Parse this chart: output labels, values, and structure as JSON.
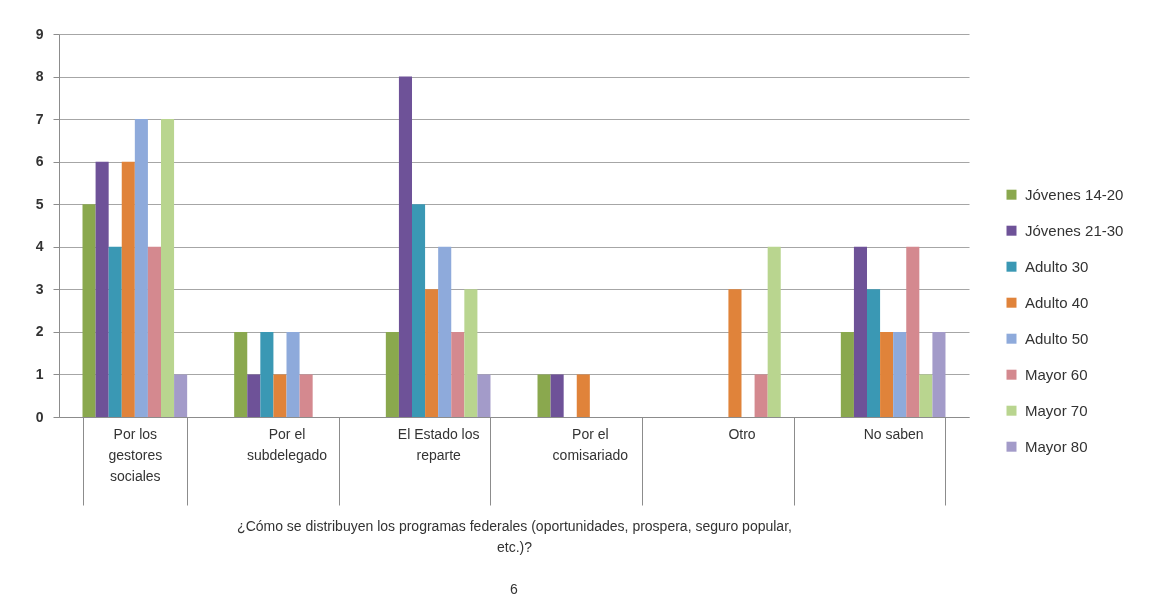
{
  "chart_data": {
    "type": "bar",
    "xlabel": "¿Cómo se distribuyen los programas federales (oportunidades, prospera, seguro popular, etc.)?",
    "annotations": [
      "6"
    ],
    "categories": [
      "Por los gestores sociales",
      "Por el subdelegado",
      "El Estado los reparte",
      "Por el comisariado",
      "Otro",
      "No saben"
    ],
    "series": [
      {
        "name": "Jóvenes 14-20",
        "color": "#8aa84e",
        "values": [
          5,
          2,
          2,
          1,
          null,
          2
        ]
      },
      {
        "name": "Jóvenes 21-30",
        "color": "#6e5298",
        "values": [
          6,
          1,
          8,
          1,
          null,
          4
        ]
      },
      {
        "name": "Adulto 30",
        "color": "#3a98b4",
        "values": [
          4,
          2,
          5,
          null,
          null,
          3
        ]
      },
      {
        "name": "Adulto 40",
        "color": "#e0833a",
        "values": [
          6,
          1,
          3,
          1,
          3,
          2
        ]
      },
      {
        "name": "Adulto 50",
        "color": "#8eaadb",
        "values": [
          7,
          2,
          4,
          null,
          null,
          2
        ]
      },
      {
        "name": "Mayor 60",
        "color": "#d4898f",
        "values": [
          4,
          1,
          2,
          null,
          1,
          4
        ]
      },
      {
        "name": "Mayor 70",
        "color": "#b9d58f",
        "values": [
          7,
          null,
          3,
          null,
          4,
          1
        ]
      },
      {
        "name": "Mayor 80",
        "color": "#a39bc9",
        "values": [
          1,
          null,
          1,
          null,
          null,
          2
        ]
      }
    ],
    "ylim": [
      0,
      9
    ],
    "yticks": [
      0,
      1,
      2,
      3,
      4,
      5,
      6,
      7,
      8,
      9
    ],
    "grid": "y",
    "legend": "right"
  }
}
